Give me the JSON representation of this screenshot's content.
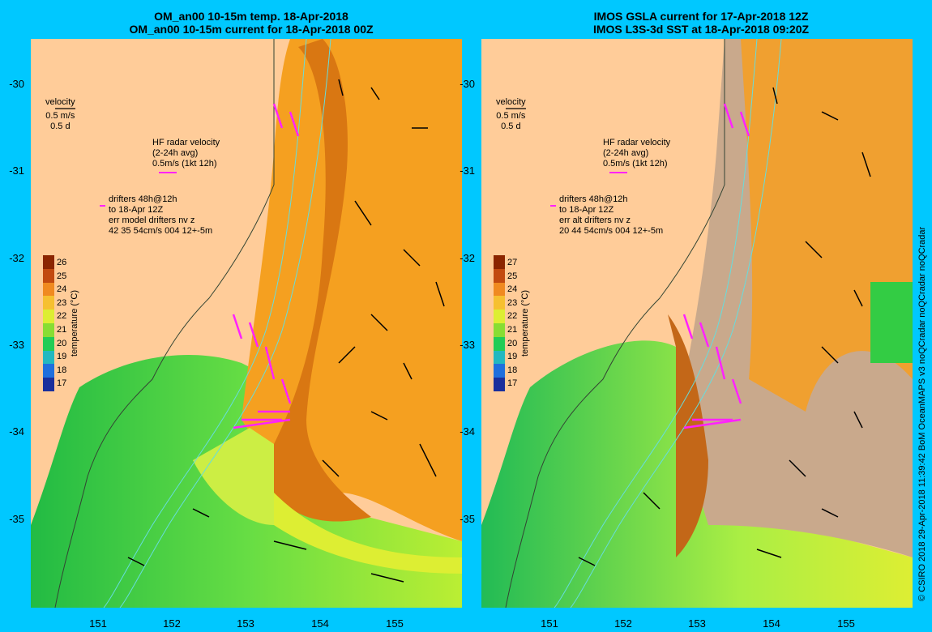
{
  "left": {
    "title_line1": "OM_an00 10-15m temp. 18-Apr-2018",
    "title_line2": "OM_an00 10-15m current for 18-Apr-2018 00Z",
    "velocity_label": "velocity",
    "velocity_scale1": "0.5 m/s",
    "velocity_scale2": "0.5 d",
    "hf_label1": "HF radar velocity",
    "hf_label2": "(2-24h avg)",
    "hf_label3": "0.5m/s (1kt 12h)",
    "drifter1": "drifters 48h@12h",
    "drifter2": "to 18-Apr 12Z",
    "drifter3": "err model drifters nv z",
    "drifter4": "42 35 54cm/s 004 12+-5m",
    "colorbar_ticks": [
      "26",
      "25",
      "24",
      "23",
      "22",
      "21",
      "20",
      "19",
      "18",
      "17"
    ],
    "colorbar_unit": "temperature (°C)"
  },
  "right": {
    "title_line1": "IMOS GSLA current for 17-Apr-2018 12Z",
    "title_line2": "IMOS L3S-3d SST at 18-Apr-2018 09:20Z",
    "velocity_label": "velocity",
    "velocity_scale1": "0.5 m/s",
    "velocity_scale2": "0.5 d",
    "hf_label1": "HF radar velocity",
    "hf_label2": "(2-24h avg)",
    "hf_label3": "0.5m/s (1kt 12h)",
    "drifter1": "drifters 48h@12h",
    "drifter2": "to 18-Apr 12Z",
    "drifter3": "err alt drifters nv z",
    "drifter4": "20 44 54cm/s 004 12+-5m",
    "colorbar_ticks": [
      "27",
      "25",
      "24",
      "23",
      "22",
      "21",
      "20",
      "19",
      "18",
      "17"
    ],
    "colorbar_unit": "temperature (°C)"
  },
  "axes": {
    "lat_ticks": [
      "-30",
      "-31",
      "-32",
      "-33",
      "-34",
      "-35"
    ],
    "lon_ticks": [
      "151",
      "152",
      "153",
      "154",
      "155"
    ]
  },
  "credit": "© CSIRO 2018  29-Apr-2018 11:39:42 BoM OceanMAPS v3 noQCradar noQCradar noQCradar",
  "colors": {
    "background": "#00c8ff",
    "land": "#ffcc99",
    "cloud": "#c9a98c",
    "hf_radar": "#ff22ff",
    "contour": "#66dddd"
  }
}
